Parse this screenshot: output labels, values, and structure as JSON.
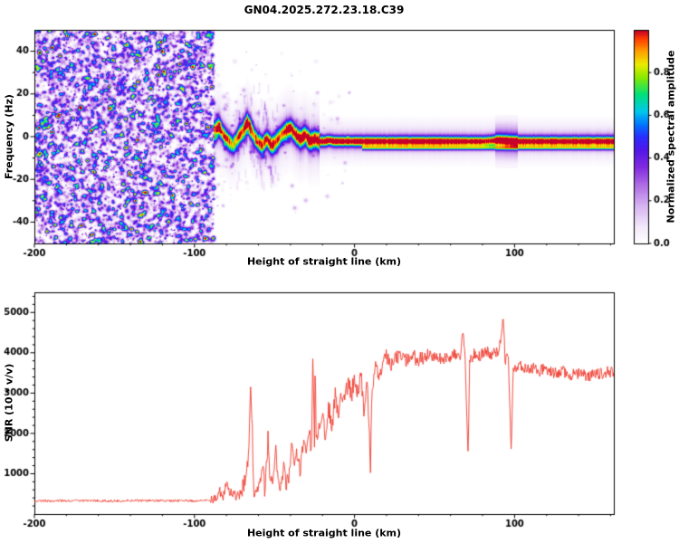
{
  "title": "GN04.2025.272.23.18.C39",
  "colors": {
    "background": "#ffffff",
    "axis": "#000000",
    "snr_line": "#ee3b2e"
  },
  "chart_data": [
    {
      "type": "heatmap",
      "name": "doppler-spectrogram",
      "xlabel": "Height of straight line (km)",
      "ylabel": "Frequency (Hz)",
      "xlim": [
        -200,
        162
      ],
      "ylim": [
        -50,
        50
      ],
      "xticks": [
        -200,
        -100,
        0,
        100
      ],
      "yticks": [
        -40,
        -20,
        0,
        20,
        40
      ],
      "grid": false,
      "colorbar": {
        "label": "Normalized spectral amplitude",
        "ticks": [
          0,
          0.2,
          0.4,
          0.6,
          0.8
        ],
        "range": [
          0,
          1
        ],
        "colormap": "white -> violet -> blue -> cyan -> green -> yellow -> orange -> red"
      },
      "noise_region": {
        "x_range": [
          -200,
          -88
        ],
        "amplitude_range": [
          0,
          0.45
        ],
        "description": "broadband speckle noise filling all frequencies until signal acquisition near -88 km"
      },
      "signal_track": {
        "x": [
          -88,
          -85,
          -82,
          -79,
          -76,
          -73,
          -70,
          -67,
          -64,
          -61,
          -58,
          -55,
          -52,
          -49,
          -46,
          -43,
          -40,
          -37,
          -34,
          -31,
          -28,
          -25,
          -22,
          -19,
          -16,
          -13,
          -10,
          -5,
          0,
          10,
          20,
          30,
          40,
          50,
          60,
          70,
          80,
          90,
          100,
          110,
          120,
          130,
          140,
          150,
          162
        ],
        "freq_hz": [
          3,
          5,
          1,
          -2,
          -4,
          0,
          3,
          7,
          2,
          -2,
          -4,
          -1,
          -4,
          -2,
          1,
          3,
          4,
          1,
          -1,
          1,
          -2,
          -1,
          -2,
          -2,
          -1.5,
          -2,
          -2,
          -2,
          -2,
          -2,
          -2,
          -2,
          -2,
          -2,
          -2,
          -2,
          -2,
          -1.5,
          -2,
          -2,
          -2,
          -2,
          -2,
          -2,
          -2
        ],
        "amplitude": [
          0.7,
          0.85,
          0.75,
          0.8,
          0.7,
          0.8,
          0.85,
          0.92,
          0.8,
          0.75,
          0.85,
          0.8,
          0.9,
          0.85,
          0.8,
          0.9,
          0.85,
          0.9,
          0.95,
          0.9,
          0.95,
          0.9,
          0.95,
          0.95,
          0.95,
          0.95,
          0.95,
          0.95,
          0.95,
          0.95,
          0.95,
          0.95,
          0.95,
          0.95,
          0.95,
          0.9,
          0.9,
          0.88,
          0.95,
          0.95,
          0.95,
          0.95,
          0.95,
          0.95,
          0.95
        ]
      },
      "secondary_track": {
        "x_range": [
          5,
          162
        ],
        "freq_hz": -5,
        "amplitude": 0.5
      },
      "disturbance": {
        "x_range": [
          88,
          102
        ],
        "freq_hz": -2,
        "amplitude": 0.18,
        "sigma_hz": 6
      }
    },
    {
      "type": "line",
      "name": "snr-profile",
      "xlabel": "Height of straight line (km)",
      "ylabel": "SNR (10 * v/v)",
      "xlim": [
        -200,
        162
      ],
      "ylim": [
        0,
        5500
      ],
      "xticks": [
        -200,
        -100,
        0,
        100
      ],
      "yticks": [
        1000,
        2000,
        3000,
        4000,
        5000
      ],
      "grid": false,
      "keypoints": [
        [
          -200,
          320
        ],
        [
          -190,
          330
        ],
        [
          -180,
          325
        ],
        [
          -170,
          335
        ],
        [
          -160,
          330
        ],
        [
          -150,
          325
        ],
        [
          -140,
          335
        ],
        [
          -130,
          330
        ],
        [
          -120,
          335
        ],
        [
          -110,
          330
        ],
        [
          -100,
          330
        ],
        [
          -95,
          335
        ],
        [
          -90,
          345
        ],
        [
          -87,
          380
        ],
        [
          -84,
          560
        ],
        [
          -82,
          430
        ],
        [
          -80,
          760
        ],
        [
          -78,
          500
        ],
        [
          -76,
          540
        ],
        [
          -74,
          430
        ],
        [
          -72,
          520
        ],
        [
          -70,
          640
        ],
        [
          -68,
          900
        ],
        [
          -66,
          1500
        ],
        [
          -65,
          3050
        ],
        [
          -64,
          2300
        ],
        [
          -63,
          620
        ],
        [
          -61,
          460
        ],
        [
          -59,
          720
        ],
        [
          -57,
          1080
        ],
        [
          -56,
          520
        ],
        [
          -54,
          1900
        ],
        [
          -53,
          880
        ],
        [
          -51,
          620
        ],
        [
          -49,
          1750
        ],
        [
          -48,
          800
        ],
        [
          -46,
          620
        ],
        [
          -44,
          1300
        ],
        [
          -43,
          720
        ],
        [
          -41,
          920
        ],
        [
          -39,
          1700
        ],
        [
          -38,
          1150
        ],
        [
          -36,
          1500
        ],
        [
          -34,
          1050
        ],
        [
          -32,
          1800
        ],
        [
          -30,
          1450
        ],
        [
          -28,
          2100
        ],
        [
          -27,
          1550
        ],
        [
          -26,
          3850
        ],
        [
          -25,
          1750
        ],
        [
          -24.5,
          3900
        ],
        [
          -24,
          1650
        ],
        [
          -22,
          2050
        ],
        [
          -20,
          2400
        ],
        [
          -18,
          1950
        ],
        [
          -16,
          2600
        ],
        [
          -14,
          2250
        ],
        [
          -12,
          2900
        ],
        [
          -10,
          2550
        ],
        [
          -8,
          3100
        ],
        [
          -6,
          2750
        ],
        [
          -4,
          3300
        ],
        [
          -2,
          2950
        ],
        [
          0,
          3400
        ],
        [
          2,
          3050
        ],
        [
          4,
          3500
        ],
        [
          6,
          2450
        ],
        [
          8,
          3300
        ],
        [
          10,
          1150
        ],
        [
          11,
          3200
        ],
        [
          13,
          3600
        ],
        [
          16,
          3500
        ],
        [
          20,
          3900
        ],
        [
          24,
          3700
        ],
        [
          28,
          4000
        ],
        [
          32,
          3800
        ],
        [
          36,
          3900
        ],
        [
          40,
          3850
        ],
        [
          45,
          3950
        ],
        [
          50,
          3900
        ],
        [
          55,
          3850
        ],
        [
          60,
          3900
        ],
        [
          64,
          4000
        ],
        [
          66,
          3800
        ],
        [
          68,
          4650
        ],
        [
          69,
          3900
        ],
        [
          71,
          1350
        ],
        [
          72,
          3800
        ],
        [
          75,
          4000
        ],
        [
          78,
          3900
        ],
        [
          82,
          4050
        ],
        [
          86,
          3950
        ],
        [
          90,
          4000
        ],
        [
          93,
          4900
        ],
        [
          94,
          3800
        ],
        [
          96,
          4100
        ],
        [
          98,
          1450
        ],
        [
          99,
          3600
        ],
        [
          102,
          3700
        ],
        [
          106,
          3600
        ],
        [
          110,
          3650
        ],
        [
          115,
          3550
        ],
        [
          120,
          3600
        ],
        [
          125,
          3500
        ],
        [
          130,
          3550
        ],
        [
          135,
          3450
        ],
        [
          140,
          3500
        ],
        [
          145,
          3400
        ],
        [
          150,
          3450
        ],
        [
          155,
          3500
        ],
        [
          162,
          3550
        ]
      ],
      "noise_segments": [
        [
          -200,
          -90,
          30
        ],
        [
          -90,
          -72,
          120
        ],
        [
          -72,
          -30,
          200
        ],
        [
          -30,
          5,
          260
        ],
        [
          5,
          45,
          200
        ],
        [
          45,
          162,
          150
        ]
      ]
    }
  ]
}
